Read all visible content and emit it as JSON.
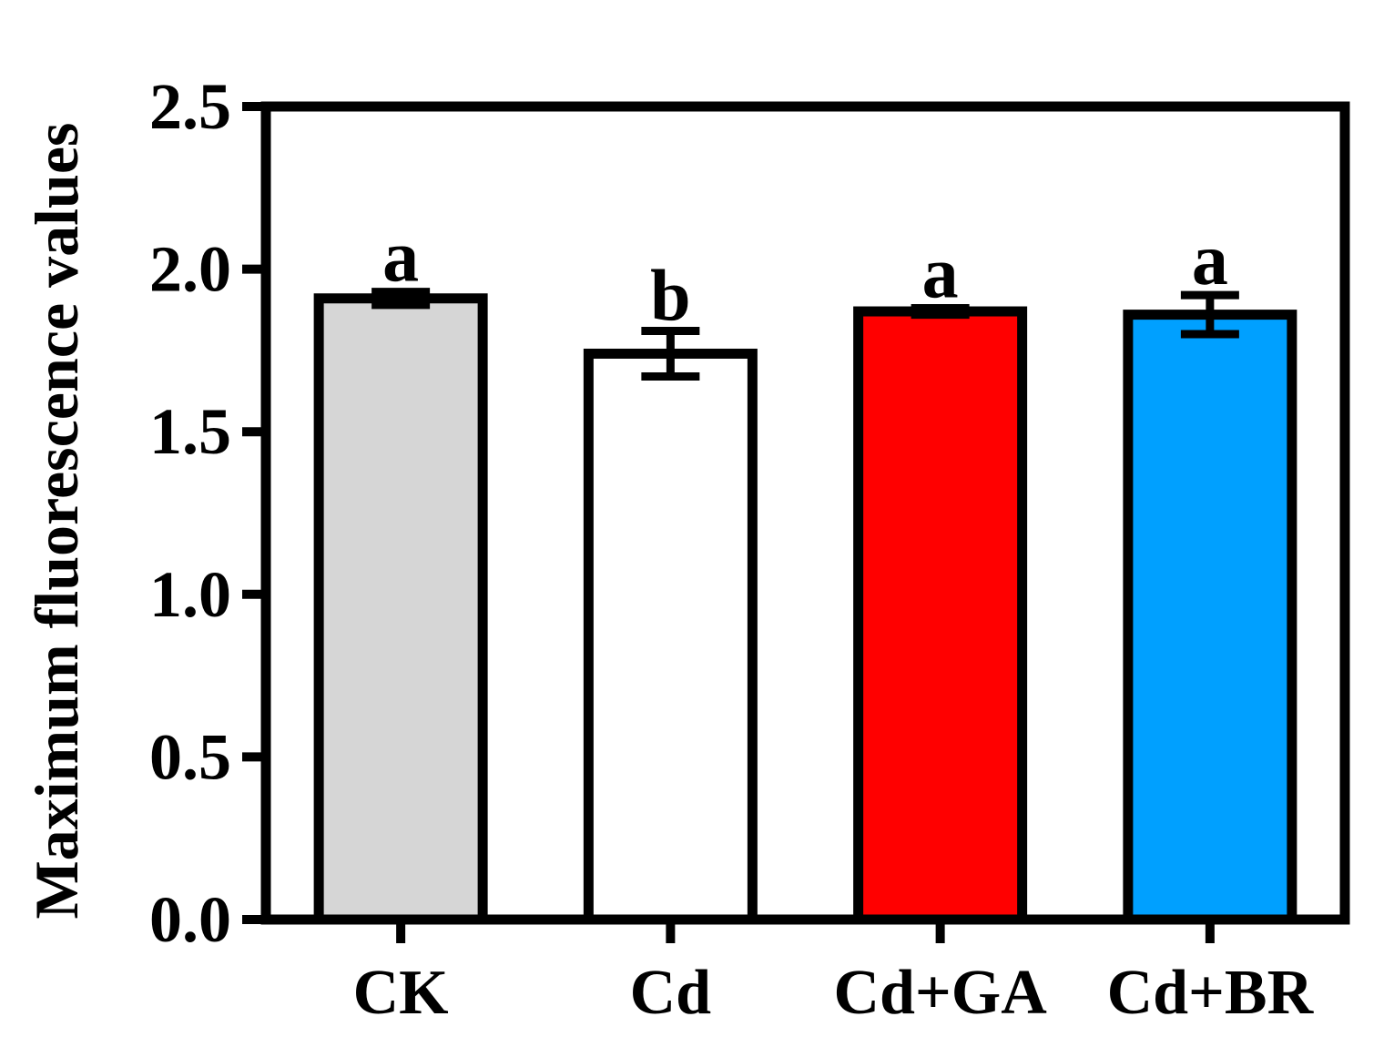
{
  "chart_data": {
    "type": "bar",
    "title": "",
    "xlabel": "",
    "ylabel": "Maximum fluorescence values",
    "ylim": [
      0,
      2.5
    ],
    "yticks": [
      "0.0",
      "0.5",
      "1.0",
      "1.5",
      "2.0",
      "2.5"
    ],
    "categories": [
      "CK",
      "Cd",
      "Cd+GA",
      "Cd+BR"
    ],
    "values": [
      1.91,
      1.74,
      1.87,
      1.86
    ],
    "errors": [
      0.02,
      0.07,
      0.01,
      0.06
    ],
    "significance": [
      "a",
      "b",
      "a",
      "a"
    ],
    "colors": [
      "#d6d6d6",
      "#ffffff",
      "#ff0000",
      "#00a0ff"
    ],
    "grid": false,
    "legend": "none"
  }
}
